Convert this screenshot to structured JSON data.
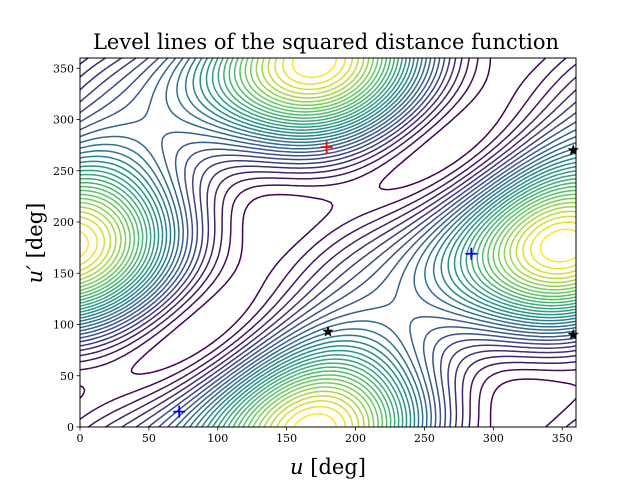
{
  "chart_data": {
    "type": "contour",
    "title": "Level lines of the squared distance function",
    "xlabel_var": "u",
    "xlabel_unit": " [deg]",
    "ylabel_var": "u′",
    "ylabel_unit": " [deg]",
    "xlim": [
      0,
      360
    ],
    "ylim": [
      0,
      360
    ],
    "x_ticks": [
      0,
      50,
      100,
      150,
      200,
      250,
      300,
      350
    ],
    "y_ticks": [
      0,
      50,
      100,
      150,
      200,
      250,
      300,
      350
    ],
    "colormap": [
      "#440154",
      "#3b528b",
      "#21918c",
      "#5ec962",
      "#fde725"
    ],
    "maximum": {
      "marker": "plus",
      "color": "#ff0000",
      "x": 179,
      "y": 273
    },
    "minima": [
      {
        "marker": "plus",
        "color": "#0000ff",
        "x": 72,
        "y": 15
      },
      {
        "marker": "plus",
        "color": "#0000ff",
        "x": 284,
        "y": 169
      }
    ],
    "saddles": [
      {
        "marker": "star",
        "color": "#000000",
        "x": 180,
        "y": 93
      },
      {
        "marker": "star",
        "color": "#000000",
        "x": 358,
        "y": 90
      },
      {
        "marker": "star",
        "color": "#000000",
        "x": 358,
        "y": 270
      }
    ]
  }
}
